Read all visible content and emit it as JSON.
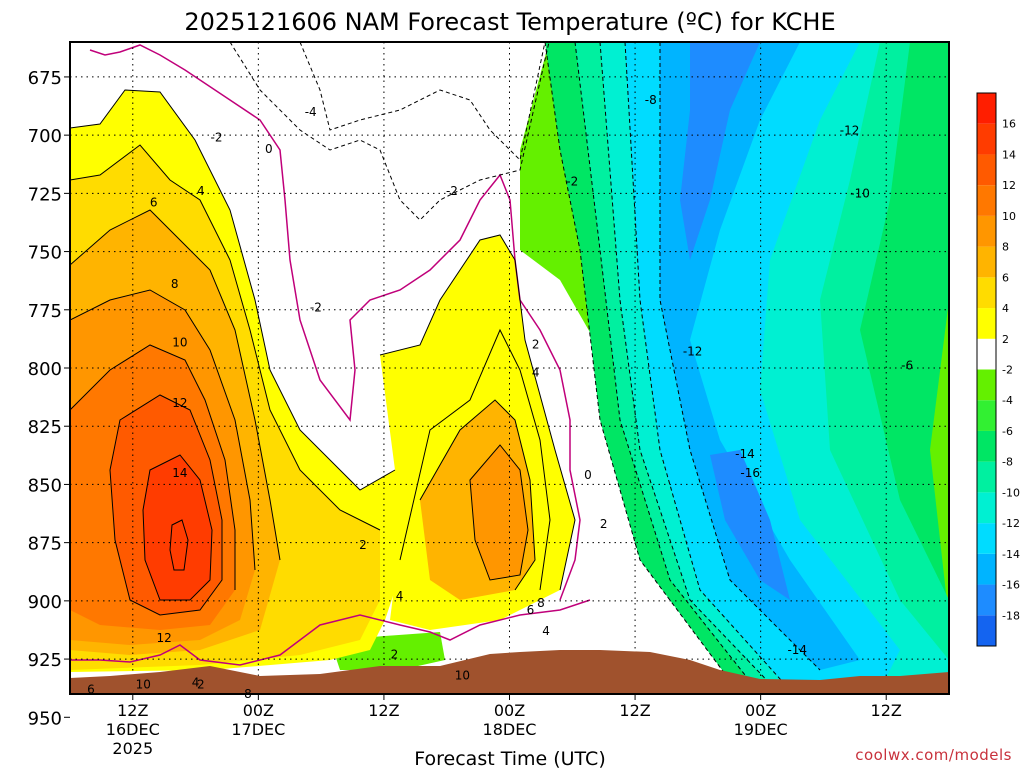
{
  "chart_data": {
    "type": "heatmap",
    "title": "2025121606 NAM Forecast Temperature (ºC) for KCHE",
    "xlabel": "Forecast Time (UTC)",
    "credit": "coolwx.com/models",
    "y_ticks": [
      675,
      700,
      725,
      750,
      775,
      800,
      825,
      850,
      875,
      900,
      925,
      950
    ],
    "ylim": [
      940,
      660
    ],
    "x_ticks": [
      {
        "hour": 6,
        "line1": "12Z",
        "line2": "16DEC",
        "line3": "2025"
      },
      {
        "hour": 18,
        "line1": "00Z",
        "line2": "17DEC",
        "line3": ""
      },
      {
        "hour": 30,
        "line1": "12Z",
        "line2": "",
        "line3": ""
      },
      {
        "hour": 42,
        "line1": "00Z",
        "line2": "18DEC",
        "line3": ""
      },
      {
        "hour": 54,
        "line1": "12Z",
        "line2": "",
        "line3": ""
      },
      {
        "hour": 66,
        "line1": "00Z",
        "line2": "19DEC",
        "line3": ""
      },
      {
        "hour": 78,
        "line1": "12Z",
        "line2": "",
        "line3": ""
      }
    ],
    "xlim": [
      0,
      84
    ],
    "colorbar": [
      {
        "label": "",
        "color": "#1464f0"
      },
      {
        "label": "-18",
        "color": "#1e8cff"
      },
      {
        "label": "-16",
        "color": "#00b4ff"
      },
      {
        "label": "-14",
        "color": "#00dcff"
      },
      {
        "label": "-12",
        "color": "#00f0d2"
      },
      {
        "label": "-10",
        "color": "#00f0a0"
      },
      {
        "label": "-8",
        "color": "#00e664"
      },
      {
        "label": "-6",
        "color": "#32f032"
      },
      {
        "label": "-4",
        "color": "#64f000"
      },
      {
        "label": "-2",
        "color": "#ffffff"
      },
      {
        "label": "2",
        "color": "#ffff00"
      },
      {
        "label": "4",
        "color": "#ffdc00"
      },
      {
        "label": "6",
        "color": "#ffb400"
      },
      {
        "label": "8",
        "color": "#ff9600"
      },
      {
        "label": "10",
        "color": "#ff7800"
      },
      {
        "label": "12",
        "color": "#ff5a00"
      },
      {
        "label": "14",
        "color": "#ff3c00"
      },
      {
        "label": "16",
        "color": "#ff1e00"
      }
    ],
    "contour_labels": [
      {
        "text": "-4",
        "hour": 23.0,
        "p": 690
      },
      {
        "text": "-8",
        "hour": 55.5,
        "p": 685
      },
      {
        "text": "-12",
        "hour": 74.5,
        "p": 698
      },
      {
        "text": "-10",
        "hour": 75.5,
        "p": 725
      },
      {
        "text": "-2",
        "hour": 14.0,
        "p": 701
      },
      {
        "text": "0",
        "hour": 19.0,
        "p": 706
      },
      {
        "text": "4",
        "hour": 12.5,
        "p": 724
      },
      {
        "text": "6",
        "hour": 8.0,
        "p": 729
      },
      {
        "text": "8",
        "hour": 10.0,
        "p": 764
      },
      {
        "text": "10",
        "hour": 10.5,
        "p": 789
      },
      {
        "text": "12",
        "hour": 10.5,
        "p": 815
      },
      {
        "text": "14",
        "hour": 10.5,
        "p": 845
      },
      {
        "text": "-2",
        "hour": 36.5,
        "p": 724
      },
      {
        "text": "-2",
        "hour": 48.0,
        "p": 720
      },
      {
        "text": "-2",
        "hour": 23.5,
        "p": 774
      },
      {
        "text": "-12",
        "hour": 59.5,
        "p": 793
      },
      {
        "text": "-6",
        "hour": 80.0,
        "p": 799
      },
      {
        "text": "-14",
        "hour": 64.5,
        "p": 837
      },
      {
        "text": "-16",
        "hour": 65.0,
        "p": 845
      },
      {
        "text": "2",
        "hour": 44.5,
        "p": 790
      },
      {
        "text": "4",
        "hour": 44.5,
        "p": 802
      },
      {
        "text": "0",
        "hour": 49.5,
        "p": 846
      },
      {
        "text": "2",
        "hour": 51.0,
        "p": 867
      },
      {
        "text": "2",
        "hour": 28.0,
        "p": 876
      },
      {
        "text": "4",
        "hour": 31.5,
        "p": 898
      },
      {
        "text": "-14",
        "hour": 69.5,
        "p": 921
      },
      {
        "text": "12",
        "hour": 9.0,
        "p": 916
      },
      {
        "text": "6",
        "hour": 2.0,
        "p": 938
      },
      {
        "text": "10",
        "hour": 7.0,
        "p": 936
      },
      {
        "text": "4",
        "hour": 12.0,
        "p": 935
      },
      {
        "text": "2",
        "hour": 12.5,
        "p": 936
      },
      {
        "text": "8",
        "hour": 17.0,
        "p": 940
      },
      {
        "text": "2",
        "hour": 31.0,
        "p": 923
      },
      {
        "text": "10",
        "hour": 37.5,
        "p": 932
      },
      {
        "text": "6",
        "hour": 44.0,
        "p": 904
      },
      {
        "text": "8",
        "hour": 45.0,
        "p": 901
      },
      {
        "text": "4",
        "hour": 45.5,
        "p": 913
      }
    ]
  }
}
